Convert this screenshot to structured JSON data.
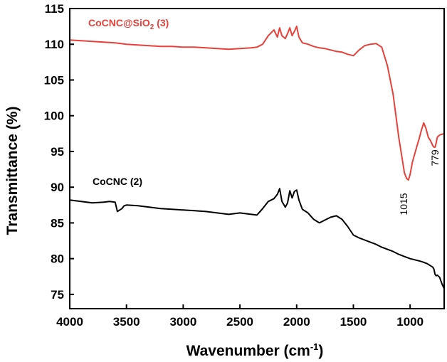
{
  "chart_data": {
    "type": "line",
    "xlabel": "Wavenumber (cm",
    "xlabel_sup": "-1",
    "xlabel_end": ")",
    "ylabel": "Transmittance (%)",
    "xlim": [
      4000,
      700
    ],
    "ylim": [
      73,
      115
    ],
    "x_reversed": true,
    "x_ticks": [
      "4000",
      "3500",
      "3000",
      "2500",
      "2000",
      "1500",
      "1000"
    ],
    "y_ticks": [
      "75",
      "80",
      "85",
      "90",
      "95",
      "100",
      "105",
      "110",
      "115"
    ],
    "series_labels": {
      "s1_main": "CoCNC@SiO",
      "s1_sub": "2",
      "s1_end": " (3)",
      "s2": "CoCNC (2)"
    },
    "annotations": [
      "1015",
      "779"
    ],
    "series": [
      {
        "name": "CoCNC@SiO2 (3)",
        "color": "#e8403a",
        "x": [
          4000,
          3900,
          3800,
          3700,
          3600,
          3500,
          3400,
          3300,
          3200,
          3100,
          3000,
          2900,
          2800,
          2700,
          2600,
          2500,
          2400,
          2350,
          2300,
          2250,
          2200,
          2170,
          2150,
          2130,
          2100,
          2080,
          2060,
          2040,
          2020,
          2000,
          1980,
          1950,
          1900,
          1850,
          1800,
          1750,
          1700,
          1650,
          1600,
          1550,
          1500,
          1450,
          1400,
          1350,
          1300,
          1250,
          1200,
          1150,
          1100,
          1070,
          1050,
          1030,
          1015,
          1000,
          980,
          950,
          920,
          900,
          880,
          860,
          840,
          820,
          800,
          790,
          779,
          770,
          760,
          740,
          720,
          700
        ],
        "y": [
          110.6,
          110.5,
          110.4,
          110.3,
          110.2,
          110.0,
          109.9,
          109.8,
          109.7,
          109.7,
          109.6,
          109.6,
          109.5,
          109.4,
          109.3,
          109.4,
          109.5,
          109.6,
          110.0,
          111.2,
          112.0,
          111.0,
          112.3,
          111.2,
          110.8,
          111.5,
          112.3,
          111.2,
          111.8,
          112.5,
          111.0,
          110.2,
          110.0,
          109.7,
          109.5,
          109.4,
          109.2,
          109.0,
          108.9,
          108.6,
          108.4,
          109.2,
          109.8,
          110.0,
          110.1,
          109.6,
          107.0,
          103.0,
          97.0,
          94.0,
          92.0,
          91.2,
          91.0,
          91.8,
          93.5,
          95.2,
          96.8,
          98.0,
          99.0,
          98.2,
          97.0,
          96.5,
          95.8,
          95.6,
          95.6,
          96.2,
          97.0,
          97.3,
          97.4,
          97.5
        ]
      },
      {
        "name": "CoCNC (2)",
        "color": "#000000",
        "x": [
          4000,
          3900,
          3800,
          3700,
          3650,
          3600,
          3580,
          3560,
          3540,
          3520,
          3500,
          3400,
          3300,
          3200,
          3100,
          3000,
          2900,
          2800,
          2700,
          2600,
          2500,
          2400,
          2350,
          2300,
          2250,
          2200,
          2170,
          2150,
          2130,
          2100,
          2080,
          2060,
          2040,
          2020,
          2000,
          1980,
          1950,
          1900,
          1850,
          1800,
          1750,
          1700,
          1650,
          1600,
          1550,
          1500,
          1450,
          1400,
          1350,
          1300,
          1250,
          1200,
          1150,
          1100,
          1050,
          1000,
          950,
          900,
          850,
          800,
          790,
          780,
          770,
          760,
          740,
          720,
          700
        ],
        "y": [
          88.2,
          88.0,
          87.8,
          87.9,
          88.0,
          87.9,
          86.6,
          86.8,
          87.0,
          87.4,
          87.5,
          87.4,
          87.2,
          87.0,
          86.9,
          86.8,
          86.7,
          86.6,
          86.4,
          86.2,
          86.4,
          86.2,
          86.1,
          87.0,
          88.0,
          88.4,
          89.0,
          89.8,
          88.0,
          87.2,
          87.8,
          89.5,
          88.5,
          89.4,
          89.6,
          88.2,
          86.9,
          86.4,
          85.5,
          85.0,
          85.4,
          85.8,
          86.0,
          85.5,
          84.5,
          83.3,
          82.9,
          82.6,
          82.3,
          82.0,
          81.6,
          81.3,
          81.0,
          80.6,
          80.3,
          80.0,
          79.8,
          79.6,
          79.3,
          78.8,
          78.5,
          77.8,
          77.6,
          77.7,
          77.4,
          76.5,
          75.8
        ]
      }
    ]
  }
}
